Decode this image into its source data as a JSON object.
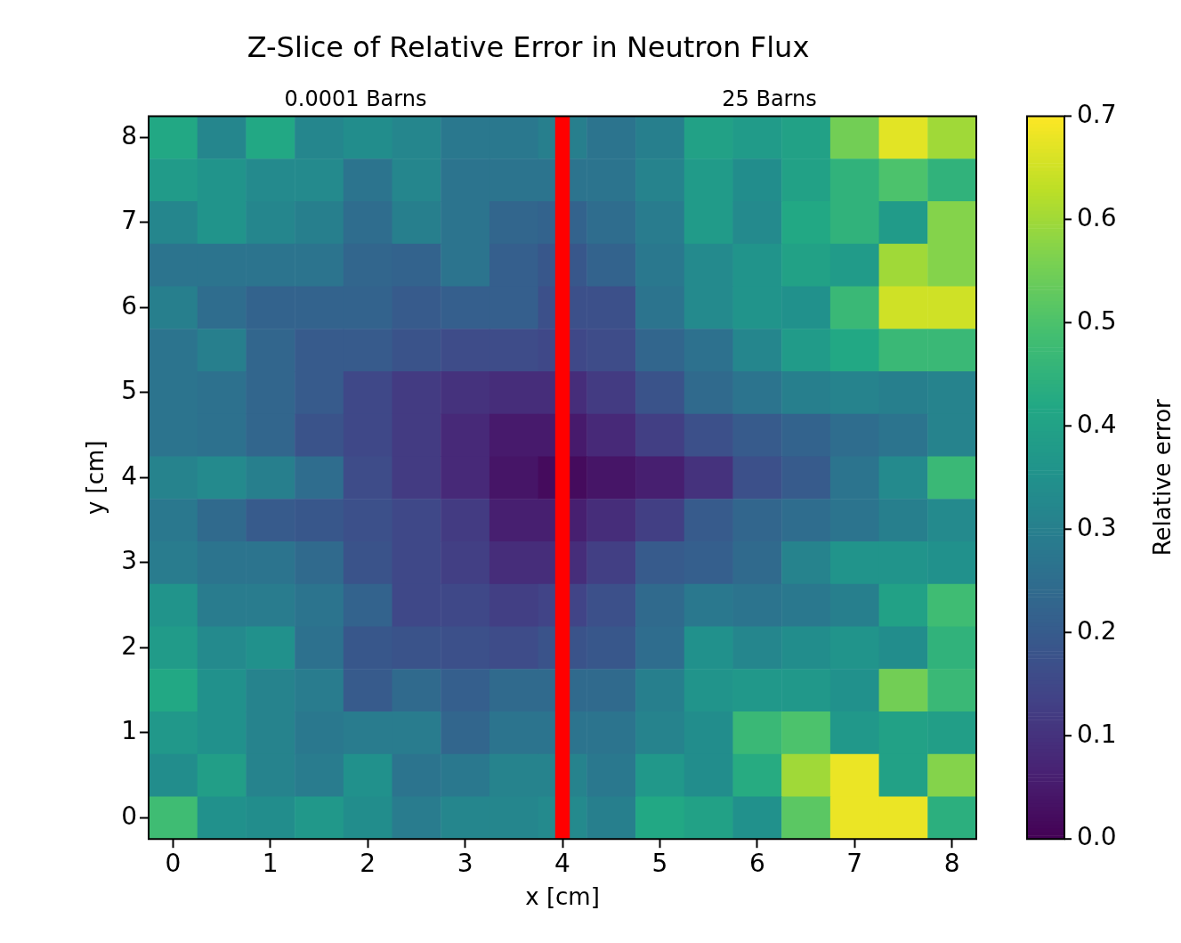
{
  "chart_data": {
    "type": "heatmap",
    "title": "Z-Slice of Relative Error in Neutron Flux",
    "xlabel": "x [cm]",
    "ylabel": "y [cm]",
    "clabel": "Relative error",
    "annotations": [
      "0.0001 Barns",
      "25 Barns"
    ],
    "categories": [
      "0",
      null,
      "1",
      null,
      "2",
      null,
      "3",
      null,
      "4",
      null,
      "5",
      null,
      "6",
      null,
      "7",
      null,
      "8"
    ],
    "y_categories": [
      "8",
      null,
      "7",
      null,
      "6",
      null,
      "5",
      null,
      "4",
      null,
      "3",
      null,
      "2",
      null,
      "1",
      null,
      "0"
    ],
    "cells": [
      [
        0.42,
        0.32,
        0.42,
        0.32,
        0.34,
        0.32,
        0.28,
        0.28,
        0.3,
        0.27,
        0.3,
        0.4,
        0.38,
        0.4,
        0.55,
        0.67,
        0.6
      ],
      [
        0.38,
        0.36,
        0.33,
        0.33,
        0.27,
        0.32,
        0.27,
        0.27,
        0.27,
        0.27,
        0.31,
        0.38,
        0.34,
        0.4,
        0.45,
        0.5,
        0.45
      ],
      [
        0.32,
        0.36,
        0.32,
        0.3,
        0.25,
        0.3,
        0.27,
        0.23,
        0.22,
        0.25,
        0.29,
        0.38,
        0.33,
        0.42,
        0.45,
        0.38,
        0.57
      ],
      [
        0.27,
        0.27,
        0.27,
        0.27,
        0.23,
        0.22,
        0.27,
        0.21,
        0.19,
        0.22,
        0.28,
        0.33,
        0.36,
        0.4,
        0.38,
        0.6,
        0.57
      ],
      [
        0.3,
        0.25,
        0.22,
        0.22,
        0.22,
        0.2,
        0.21,
        0.21,
        0.17,
        0.17,
        0.27,
        0.33,
        0.36,
        0.35,
        0.47,
        0.65,
        0.65
      ],
      [
        0.27,
        0.3,
        0.23,
        0.2,
        0.2,
        0.18,
        0.16,
        0.16,
        0.15,
        0.16,
        0.23,
        0.26,
        0.32,
        0.38,
        0.42,
        0.47,
        0.47
      ],
      [
        0.27,
        0.26,
        0.23,
        0.2,
        0.15,
        0.12,
        0.1,
        0.09,
        0.09,
        0.12,
        0.18,
        0.24,
        0.27,
        0.3,
        0.31,
        0.3,
        0.31
      ],
      [
        0.27,
        0.26,
        0.23,
        0.18,
        0.15,
        0.12,
        0.08,
        0.05,
        0.05,
        0.08,
        0.13,
        0.17,
        0.2,
        0.22,
        0.25,
        0.27,
        0.31
      ],
      [
        0.31,
        0.33,
        0.3,
        0.25,
        0.16,
        0.12,
        0.08,
        0.04,
        0.02,
        0.04,
        0.06,
        0.1,
        0.17,
        0.2,
        0.27,
        0.33,
        0.47
      ],
      [
        0.28,
        0.24,
        0.2,
        0.19,
        0.17,
        0.15,
        0.12,
        0.06,
        0.06,
        0.09,
        0.13,
        0.2,
        0.23,
        0.25,
        0.27,
        0.3,
        0.33
      ],
      [
        0.29,
        0.27,
        0.27,
        0.24,
        0.18,
        0.15,
        0.13,
        0.09,
        0.09,
        0.13,
        0.2,
        0.21,
        0.24,
        0.31,
        0.36,
        0.36,
        0.35
      ],
      [
        0.36,
        0.29,
        0.29,
        0.27,
        0.22,
        0.15,
        0.15,
        0.13,
        0.14,
        0.17,
        0.24,
        0.28,
        0.27,
        0.28,
        0.3,
        0.4,
        0.48
      ],
      [
        0.38,
        0.33,
        0.35,
        0.26,
        0.19,
        0.18,
        0.17,
        0.16,
        0.18,
        0.19,
        0.25,
        0.35,
        0.32,
        0.34,
        0.36,
        0.34,
        0.45
      ],
      [
        0.42,
        0.35,
        0.31,
        0.29,
        0.2,
        0.24,
        0.21,
        0.24,
        0.24,
        0.24,
        0.3,
        0.36,
        0.37,
        0.37,
        0.35,
        0.55,
        0.47
      ],
      [
        0.37,
        0.35,
        0.31,
        0.28,
        0.29,
        0.29,
        0.23,
        0.27,
        0.27,
        0.27,
        0.31,
        0.34,
        0.47,
        0.5,
        0.37,
        0.4,
        0.39
      ],
      [
        0.34,
        0.39,
        0.31,
        0.29,
        0.35,
        0.27,
        0.28,
        0.31,
        0.31,
        0.28,
        0.37,
        0.34,
        0.43,
        0.6,
        0.68,
        0.4,
        0.57
      ],
      [
        0.48,
        0.35,
        0.34,
        0.37,
        0.34,
        0.29,
        0.32,
        0.32,
        0.33,
        0.3,
        0.42,
        0.4,
        0.35,
        0.52,
        0.68,
        0.68,
        0.44
      ]
    ],
    "clim": [
      0,
      0.7
    ],
    "cticks": [
      {
        "value": 0,
        "label": "0.0"
      },
      0.1,
      0.2,
      0.3,
      0.4,
      0.5,
      0.6,
      0.7
    ],
    "ref_lines": [
      {
        "axis": "x",
        "value": "4",
        "color": "#ff0000"
      }
    ]
  }
}
